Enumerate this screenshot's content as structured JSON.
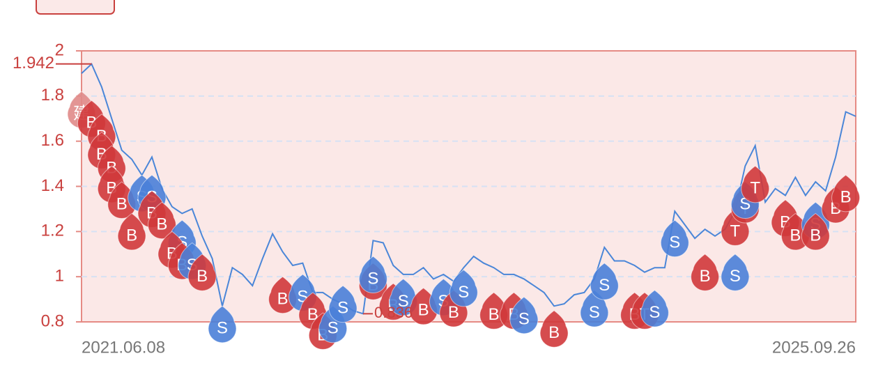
{
  "chart_data": {
    "type": "line",
    "categories": [
      "2021.06.08",
      null,
      null,
      null,
      null,
      null,
      null,
      null,
      null,
      null,
      null,
      null,
      null,
      null,
      null,
      null,
      null,
      null,
      null,
      null,
      null,
      null,
      null,
      null,
      null,
      null,
      null,
      null,
      null,
      null,
      null,
      null,
      null,
      null,
      null,
      null,
      null,
      null,
      null,
      null,
      null,
      null,
      null,
      null,
      null,
      null,
      null,
      null,
      null,
      null,
      null,
      null,
      null,
      null,
      null,
      null,
      null,
      null,
      null,
      null,
      null,
      null,
      null,
      null,
      null,
      null,
      null,
      null,
      null,
      null,
      null,
      null,
      null,
      null,
      null,
      null,
      null,
      "2025.09.26"
    ],
    "series": [
      {
        "color": "#4a86d8",
        "values": [
          1.9,
          1.942,
          1.84,
          1.7,
          1.56,
          1.52,
          1.45,
          1.53,
          1.39,
          1.31,
          1.28,
          1.3,
          1.18,
          1.08,
          0.87,
          1.04,
          1.01,
          0.96,
          1.08,
          1.19,
          1.11,
          1.05,
          1.06,
          0.93,
          0.93,
          0.9,
          0.88,
          0.85,
          0.836,
          1.16,
          1.15,
          1.05,
          1.01,
          1.01,
          1.04,
          0.99,
          1.01,
          0.98,
          1.04,
          1.09,
          1.06,
          1.04,
          1.01,
          1.01,
          0.99,
          0.96,
          0.93,
          0.87,
          0.88,
          0.92,
          0.93,
          0.99,
          1.13,
          1.07,
          1.07,
          1.05,
          1.02,
          1.04,
          1.04,
          1.29,
          1.23,
          1.17,
          1.21,
          1.18,
          1.21,
          1.29,
          1.49,
          1.58,
          1.33,
          1.39,
          1.36,
          1.44,
          1.36,
          1.42,
          1.38,
          1.53,
          1.73,
          1.71
        ]
      }
    ],
    "ylim": [
      0.8,
      2
    ],
    "yticks": [
      0.8,
      1,
      1.2,
      1.4,
      1.6,
      1.8,
      2
    ],
    "grid": true,
    "max": 1.942,
    "min": 0.836,
    "markers": [
      {
        "label": "建",
        "at": 0,
        "value": 1.82,
        "color": "#e08a88"
      },
      {
        "label": "B",
        "at": 1,
        "value": 1.78,
        "color": "#d0393b"
      },
      {
        "label": "B",
        "at": 2,
        "value": 1.72,
        "color": "#d0393b"
      },
      {
        "label": "B",
        "at": 2,
        "value": 1.64,
        "color": "#d0393b"
      },
      {
        "label": "B",
        "at": 3,
        "value": 1.58,
        "color": "#d0393b"
      },
      {
        "label": "B",
        "at": 3,
        "value": 1.49,
        "color": "#d0393b"
      },
      {
        "label": "B",
        "at": 4,
        "value": 1.42,
        "color": "#d0393b"
      },
      {
        "label": "S",
        "at": 6,
        "value": 1.45,
        "color": "#4a7fd8"
      },
      {
        "label": "S",
        "at": 7,
        "value": 1.45,
        "color": "#4a7fd8"
      },
      {
        "label": "B",
        "at": 7,
        "value": 1.38,
        "color": "#d0393b"
      },
      {
        "label": "B",
        "at": 8,
        "value": 1.33,
        "color": "#d0393b"
      },
      {
        "label": "B",
        "at": 5,
        "value": 1.28,
        "color": "#d0393b"
      },
      {
        "label": "S",
        "at": 10,
        "value": 1.25,
        "color": "#4a7fd8"
      },
      {
        "label": "B",
        "at": 9,
        "value": 1.2,
        "color": "#d0393b"
      },
      {
        "label": "B",
        "at": 10,
        "value": 1.15,
        "color": "#d0393b"
      },
      {
        "label": "S",
        "at": 11,
        "value": 1.15,
        "color": "#4a7fd8"
      },
      {
        "label": "B",
        "at": 12,
        "value": 1.1,
        "color": "#d0393b"
      },
      {
        "label": "S",
        "at": 14,
        "value": 0.87,
        "color": "#4a7fd8"
      },
      {
        "label": "B",
        "at": 20,
        "value": 1.0,
        "color": "#d0393b"
      },
      {
        "label": "S",
        "at": 22,
        "value": 1.01,
        "color": "#4a7fd8"
      },
      {
        "label": "B",
        "at": 23,
        "value": 0.93,
        "color": "#d0393b"
      },
      {
        "label": "B",
        "at": 24,
        "value": 0.84,
        "color": "#d0393b"
      },
      {
        "label": "S",
        "at": 25,
        "value": 0.87,
        "color": "#4a7fd8"
      },
      {
        "label": "S",
        "at": 26,
        "value": 0.96,
        "color": "#4a7fd8"
      },
      {
        "label": "B",
        "at": 29,
        "value": 1.06,
        "color": "#d0393b"
      },
      {
        "label": "S",
        "at": 29,
        "value": 1.09,
        "color": "#4a7fd8"
      },
      {
        "label": "B",
        "at": 31,
        "value": 0.97,
        "color": "#d0393b"
      },
      {
        "label": "S",
        "at": 32,
        "value": 0.99,
        "color": "#4a7fd8"
      },
      {
        "label": "B",
        "at": 34,
        "value": 0.95,
        "color": "#d0393b"
      },
      {
        "label": "S",
        "at": 36,
        "value": 0.99,
        "color": "#4a7fd8"
      },
      {
        "label": "B",
        "at": 37,
        "value": 0.94,
        "color": "#d0393b"
      },
      {
        "label": "S",
        "at": 38,
        "value": 1.03,
        "color": "#4a7fd8"
      },
      {
        "label": "B",
        "at": 41,
        "value": 0.93,
        "color": "#d0393b"
      },
      {
        "label": "B",
        "at": 43,
        "value": 0.93,
        "color": "#d0393b"
      },
      {
        "label": "S",
        "at": 44,
        "value": 0.91,
        "color": "#4a7fd8"
      },
      {
        "label": "B",
        "at": 47,
        "value": 0.85,
        "color": "#d0393b"
      },
      {
        "label": "S",
        "at": 51,
        "value": 0.94,
        "color": "#4a7fd8"
      },
      {
        "label": "S",
        "at": 52,
        "value": 1.06,
        "color": "#4a7fd8"
      },
      {
        "label": "B",
        "at": 55,
        "value": 0.93,
        "color": "#d0393b"
      },
      {
        "label": "T",
        "at": 56,
        "value": 0.93,
        "color": "#d0393b"
      },
      {
        "label": "S",
        "at": 57,
        "value": 0.94,
        "color": "#4a7fd8"
      },
      {
        "label": "S",
        "at": 59,
        "value": 1.25,
        "color": "#4a7fd8"
      },
      {
        "label": "B",
        "at": 62,
        "value": 1.1,
        "color": "#d0393b"
      },
      {
        "label": "S",
        "at": 65,
        "value": 1.1,
        "color": "#4a7fd8"
      },
      {
        "label": "T",
        "at": 65,
        "value": 1.3,
        "color": "#d0393b"
      },
      {
        "label": "T",
        "at": 66,
        "value": 1.4,
        "color": "#d0393b"
      },
      {
        "label": "S",
        "at": 66,
        "value": 1.42,
        "color": "#4a7fd8"
      },
      {
        "label": "T",
        "at": 67,
        "value": 1.49,
        "color": "#d0393b"
      },
      {
        "label": "B",
        "at": 70,
        "value": 1.34,
        "color": "#d0393b"
      },
      {
        "label": "B",
        "at": 71,
        "value": 1.28,
        "color": "#d0393b"
      },
      {
        "label": "S",
        "at": 73,
        "value": 1.33,
        "color": "#4a7fd8"
      },
      {
        "label": "B",
        "at": 73,
        "value": 1.28,
        "color": "#d0393b"
      },
      {
        "label": "B",
        "at": 75,
        "value": 1.4,
        "color": "#d0393b"
      },
      {
        "label": "B",
        "at": 76,
        "value": 1.45,
        "color": "#d0393b"
      }
    ]
  }
}
